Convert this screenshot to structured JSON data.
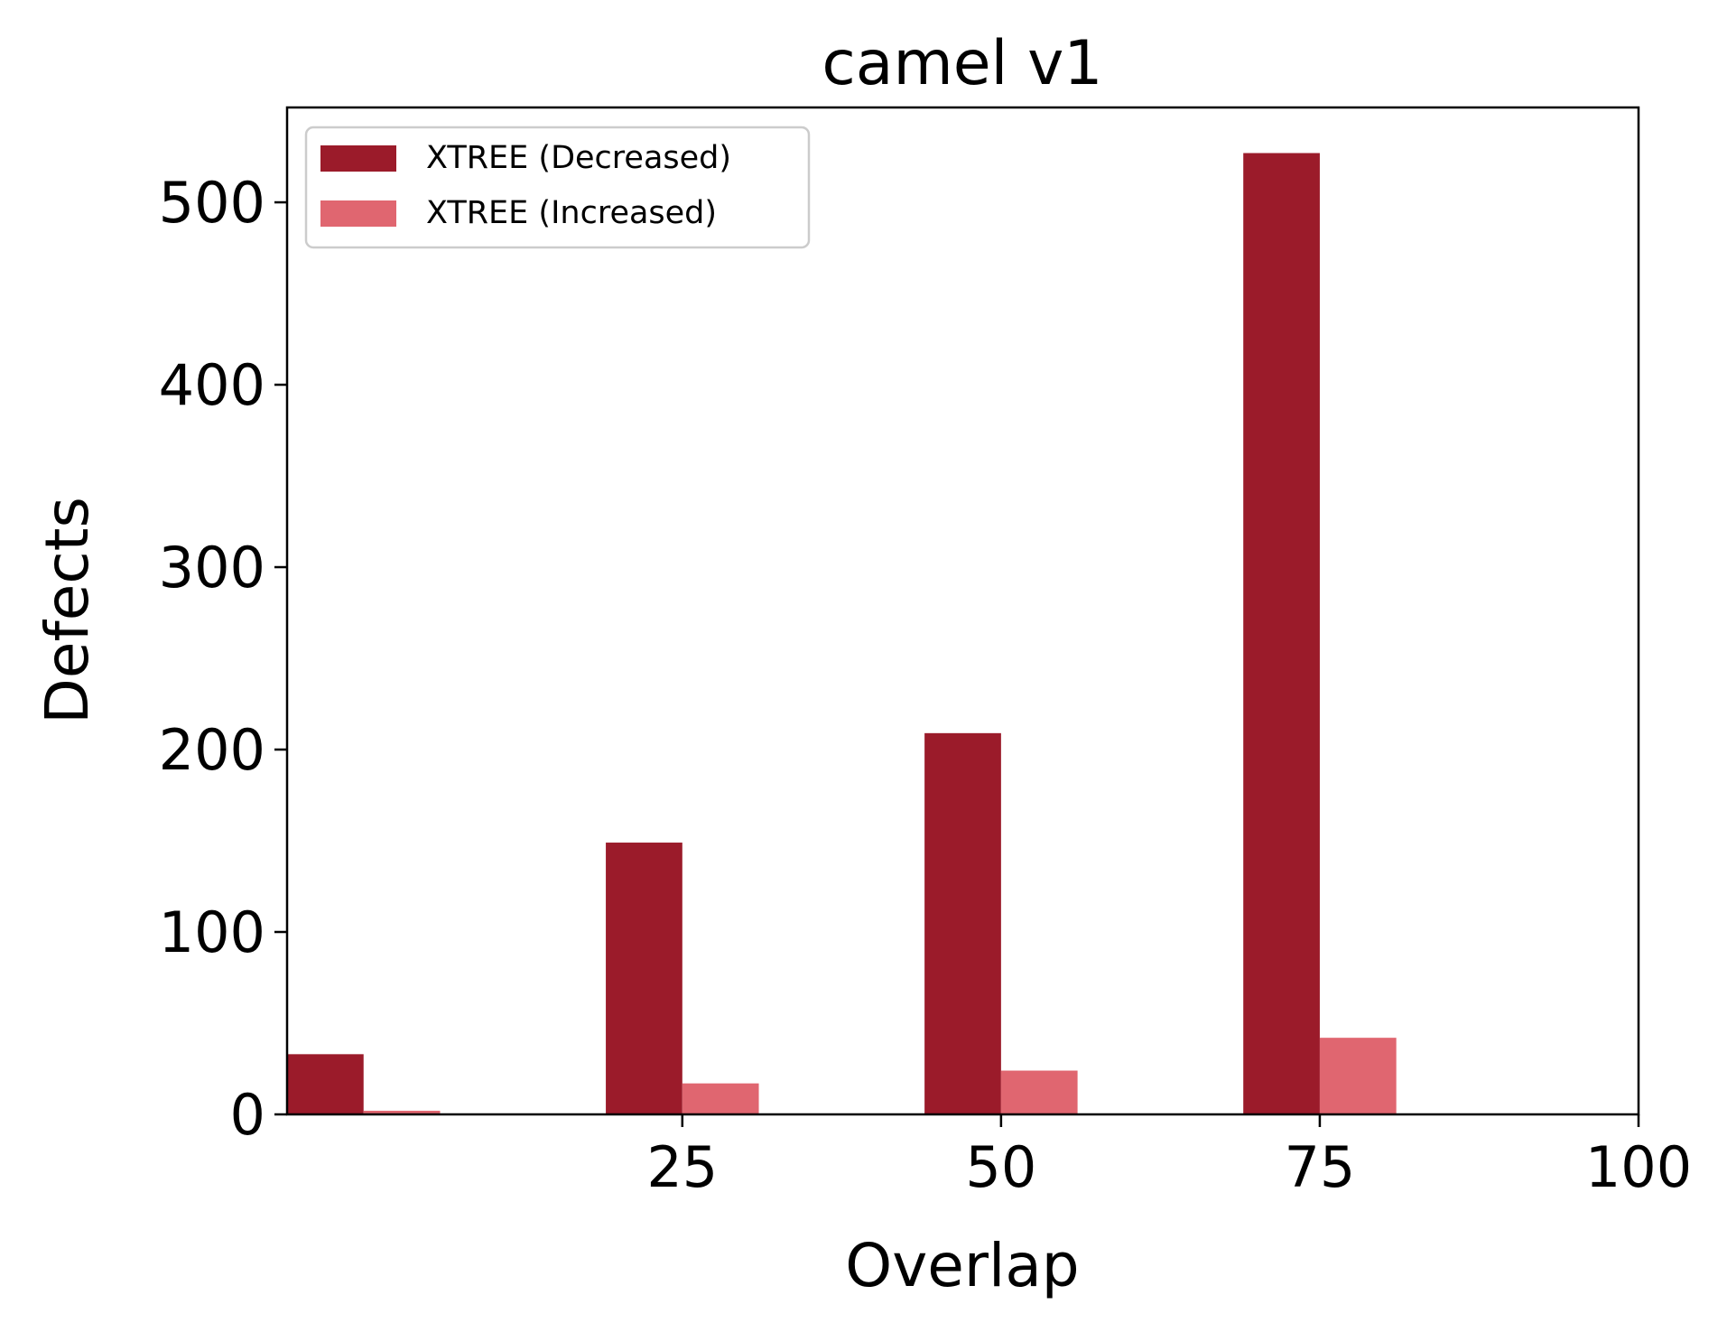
{
  "chart_data": {
    "type": "bar",
    "title": "camel v1",
    "xlabel": "Overlap",
    "ylabel": "Defects",
    "x_groups": [
      0,
      25,
      50,
      75
    ],
    "xlim": [
      -6,
      100
    ],
    "ylim": [
      0,
      552
    ],
    "xticks": [
      25,
      50,
      75,
      100
    ],
    "yticks": [
      0,
      100,
      200,
      300,
      400,
      500
    ],
    "grid": false,
    "legend_position": "top-left",
    "series": [
      {
        "name": "XTREE (Decreased)",
        "color": "#9b1b2a",
        "values": [
          33,
          149,
          209,
          527
        ]
      },
      {
        "name": "XTREE (Increased)",
        "color": "#e06670",
        "values": [
          2,
          17,
          24,
          42
        ]
      }
    ]
  }
}
